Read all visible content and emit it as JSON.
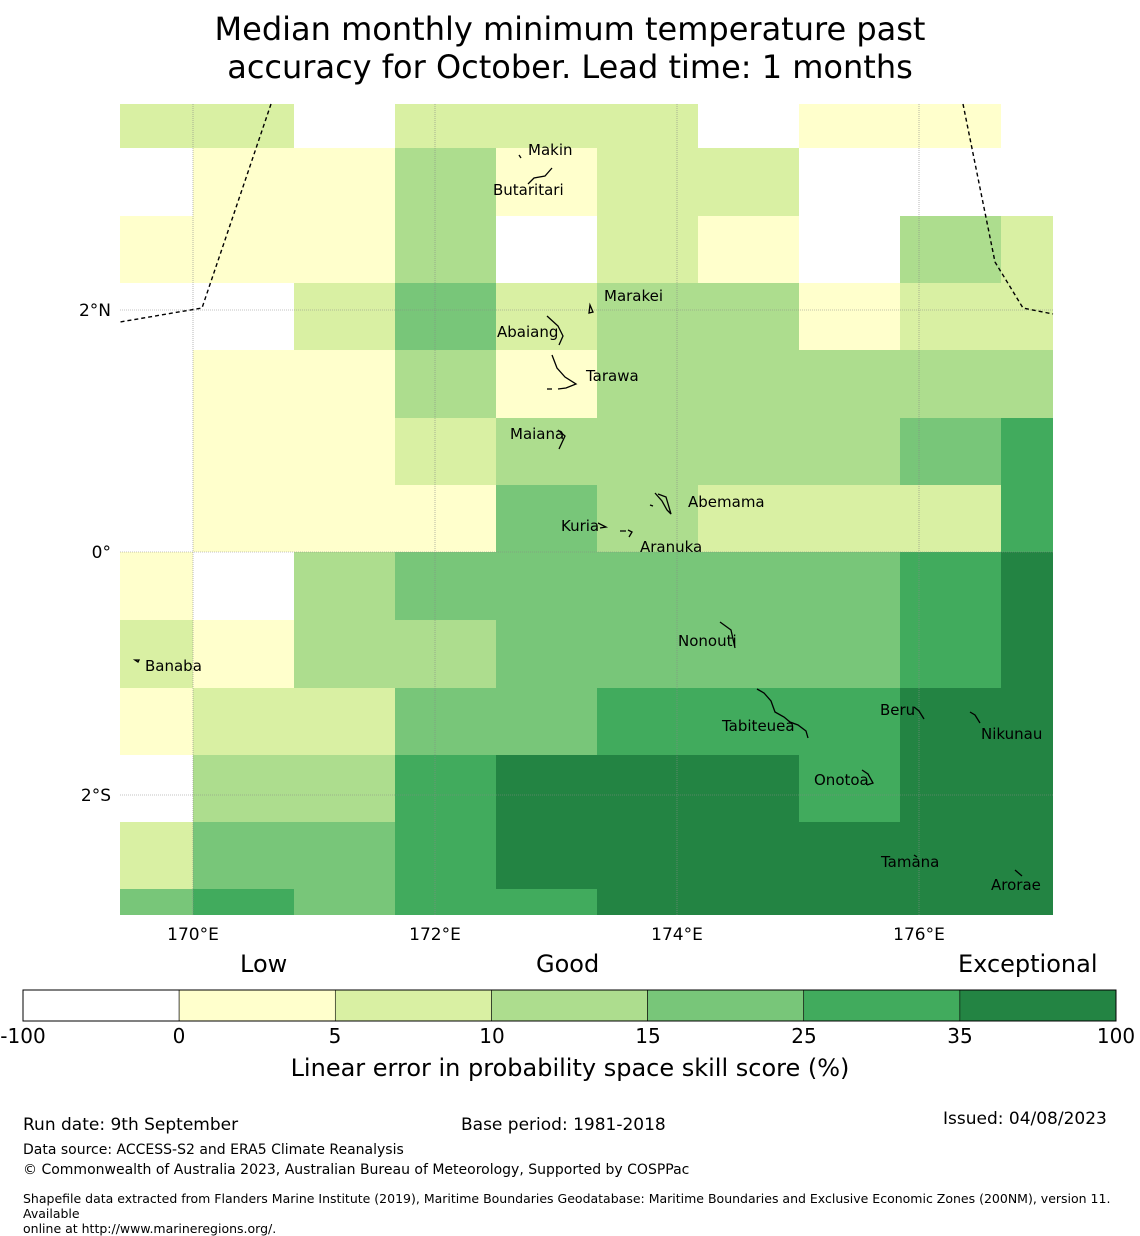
{
  "title_line1": "Median monthly minimum temperature past",
  "title_line2": "accuracy for October. Lead time: 1 months",
  "map": {
    "lon_labels": [
      "170°E",
      "172°E",
      "174°E",
      "176°E"
    ],
    "lat_labels": [
      "2°N",
      "0°",
      "2°S"
    ],
    "islands": [
      {
        "name": "Makin"
      },
      {
        "name": "Butaritari"
      },
      {
        "name": "Marakei"
      },
      {
        "name": "Abaiang"
      },
      {
        "name": "Tarawa"
      },
      {
        "name": "Maiana"
      },
      {
        "name": "Abemama"
      },
      {
        "name": "Kuria"
      },
      {
        "name": "Aranuka"
      },
      {
        "name": "Nonouti"
      },
      {
        "name": "Banaba"
      },
      {
        "name": "Beru"
      },
      {
        "name": "Tabiteuea"
      },
      {
        "name": "Nikunau"
      },
      {
        "name": "Onotoa"
      },
      {
        "name": "Tamana"
      },
      {
        "name": "Arorae"
      }
    ],
    "grid_classes": [
      [
        2,
        2,
        -1,
        2,
        2,
        2,
        -1,
        1,
        1,
        -1
      ],
      [
        0,
        1,
        1,
        3,
        1,
        2,
        2,
        0,
        0,
        -1
      ],
      [
        1,
        1,
        1,
        3,
        0,
        2,
        1,
        0,
        3,
        2
      ],
      [
        0,
        0,
        2,
        4,
        2,
        3,
        3,
        1,
        2,
        2
      ],
      [
        0,
        1,
        1,
        3,
        1,
        3,
        3,
        3,
        3,
        3
      ],
      [
        0,
        1,
        1,
        2,
        3,
        3,
        3,
        3,
        4,
        5
      ],
      [
        0,
        1,
        1,
        1,
        4,
        3,
        2,
        2,
        2,
        5
      ],
      [
        1,
        0,
        3,
        4,
        4,
        4,
        4,
        4,
        5,
        6
      ],
      [
        2,
        1,
        3,
        3,
        4,
        4,
        4,
        4,
        5,
        6
      ],
      [
        1,
        2,
        2,
        4,
        4,
        5,
        5,
        5,
        6,
        6
      ],
      [
        0,
        3,
        3,
        5,
        6,
        6,
        6,
        5,
        6,
        6
      ],
      [
        2,
        4,
        4,
        5,
        6,
        6,
        6,
        6,
        6,
        6
      ],
      [
        4,
        5,
        4,
        5,
        5,
        6,
        6,
        6,
        6,
        6
      ]
    ]
  },
  "legend": {
    "low": "Low",
    "good": "Good",
    "exceptional": "Exceptional",
    "classes": [
      {
        "color": "#ffffff"
      },
      {
        "color": "#ffffcc"
      },
      {
        "color": "#d9f0a3"
      },
      {
        "color": "#addd8e"
      },
      {
        "color": "#78c679"
      },
      {
        "color": "#41ab5d"
      },
      {
        "color": "#238443"
      }
    ],
    "ticks": [
      "-100",
      "0",
      "5",
      "10",
      "15",
      "25",
      "35",
      "100"
    ],
    "label": "Linear error in probability space skill score (%)"
  },
  "footer": {
    "run_date": "Run date: 9th September",
    "base_period": "Base period: 1981-2018",
    "issued": "Issued: 04/08/2023",
    "data_source": "Data source: ACCESS-S2 and ERA5 Climate Reanalysis",
    "copyright": "© Commonwealth of Australia 2023, Australian Bureau of Meteorology, Supported by COSPPac",
    "shapefile_line1": "Shapefile data extracted from Flanders Marine Institute (2019), Maritime Boundaries Geodatabase: Maritime Boundaries and Exclusive Economic Zones (200NM), version 11. Available",
    "shapefile_line2": "online at http://www.marineregions.org/."
  }
}
